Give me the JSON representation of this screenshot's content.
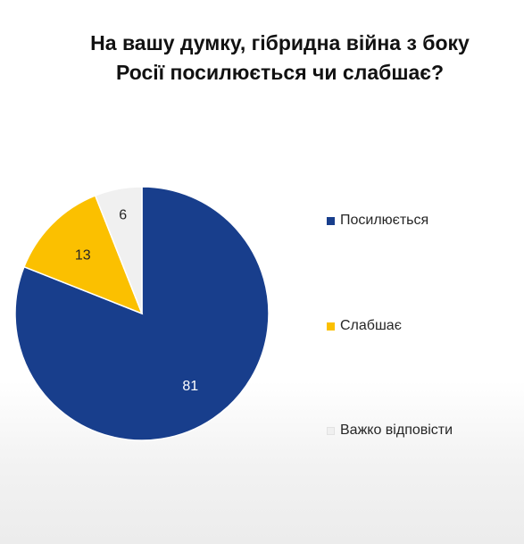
{
  "chart_data": {
    "type": "pie",
    "title_lines": [
      "На вашу думку, гібридна війна з боку",
      "Росії посилюється чи слабшає?"
    ],
    "categories": [
      "Посилюється",
      "Слабшає",
      "Важко відповісти"
    ],
    "values": [
      81,
      13,
      6
    ],
    "data_labels": [
      "81",
      "13",
      "6"
    ],
    "colors": [
      "#183e8c",
      "#fbc000",
      "#f0f0f0"
    ],
    "legend_position": "right"
  }
}
